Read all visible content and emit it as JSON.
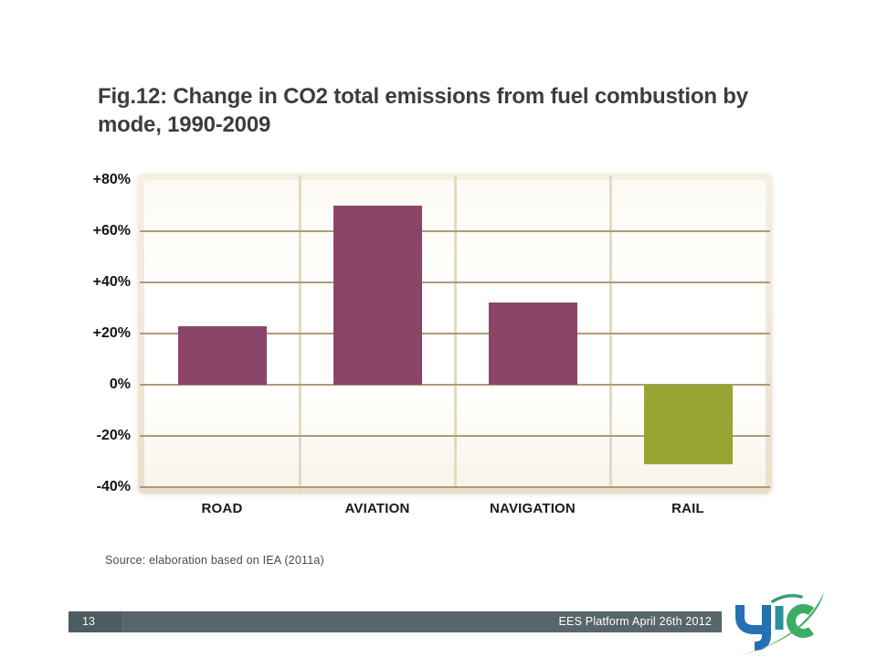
{
  "slide": {
    "title": "Fig.12: Change in CO2 total emissions from fuel combustion by mode, 1990-2009",
    "source": "Source: elaboration based on IEA (2011a)",
    "footer": {
      "page_number": "13",
      "event": "EES Platform April 26th 2012"
    },
    "logo": {
      "name": "UIC",
      "blue": "#2371b2",
      "teal": "#2c8fa0",
      "green": "#3dac63",
      "swoosh_green": "#44b168"
    }
  },
  "chart_data": {
    "type": "bar",
    "title": "Change in CO2 total emissions from fuel combustion by mode, 1990-2009",
    "categories": [
      "ROAD",
      "AVIATION",
      "NAVIGATION",
      "RAIL"
    ],
    "values": [
      23,
      70,
      32,
      -31
    ],
    "unit": "%",
    "ylim": [
      -40,
      80
    ],
    "ytick_interval": 20,
    "yticks": [
      80,
      60,
      40,
      20,
      0,
      -20,
      -40
    ],
    "ytick_labels": [
      "+80%",
      "+60%",
      "+40%",
      "+20%",
      "0%",
      "-20%",
      "-40%"
    ],
    "xlabel": "",
    "ylabel": "",
    "legend": "none",
    "grid": "horizontal tan gridlines every 20%, cream vertical column separators",
    "colors": {
      "positive_bar": "#8b4569",
      "negative_bar": "#97a533",
      "gridline": "#ad9c7b",
      "divider": "#e3dac3",
      "frame": "#efe8d6",
      "plot_background": "#fffdf8"
    }
  }
}
